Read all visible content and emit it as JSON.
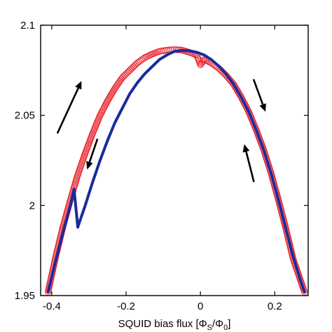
{
  "chart_data": {
    "type": "scatter",
    "title": "",
    "xlabel": "SQUID bias flux [Φ_S/Φ_0]",
    "xlabel_parts": {
      "main": "SQUID bias flux [Φ",
      "sub1": "S",
      "mid": "/Φ",
      "sub2": "0",
      "end": "]"
    },
    "ylabel": "",
    "xlim": [
      -0.43,
      0.29
    ],
    "ylim": [
      1.95,
      2.1
    ],
    "grid": false,
    "x_ticks": [
      -0.4,
      -0.2,
      0,
      0.2
    ],
    "x_tick_labels": [
      "-0.4",
      "-0.2",
      "0",
      "0.2"
    ],
    "y_ticks": [
      1.95,
      2.0,
      2.05,
      2.1
    ],
    "y_tick_labels": [
      "1.95",
      "2",
      "2.05",
      "2.1"
    ],
    "series": [
      {
        "marker": "open-circle",
        "color": "#e8202a",
        "x": [
          -0.41,
          -0.39,
          -0.37,
          -0.35,
          -0.33,
          -0.31,
          -0.29,
          -0.27,
          -0.25,
          -0.23,
          -0.21,
          -0.19,
          -0.17,
          -0.15,
          -0.13,
          -0.11,
          -0.09,
          -0.07,
          -0.05,
          -0.03,
          -0.01,
          0.0,
          0.01,
          0.03,
          0.05,
          0.07,
          0.09,
          0.11,
          0.13,
          0.15,
          0.17,
          0.19,
          0.21,
          0.23,
          0.25,
          0.27,
          0.28
        ],
        "y": [
          1.952,
          1.971,
          1.988,
          2.003,
          2.017,
          2.029,
          2.04,
          2.05,
          2.058,
          2.065,
          2.071,
          2.075,
          2.079,
          2.082,
          2.084,
          2.0855,
          2.0862,
          2.0865,
          2.0862,
          2.085,
          2.0835,
          2.078,
          2.081,
          2.079,
          2.076,
          2.072,
          2.067,
          2.06,
          2.052,
          2.042,
          2.031,
          2.018,
          2.003,
          1.987,
          1.97,
          1.958,
          1.952
        ]
      },
      {
        "marker": "filled-dot",
        "color": "#1a2a9c",
        "x": [
          -0.41,
          -0.39,
          -0.37,
          -0.35,
          -0.34,
          -0.33,
          -0.31,
          -0.29,
          -0.27,
          -0.25,
          -0.23,
          -0.21,
          -0.19,
          -0.17,
          -0.15,
          -0.13,
          -0.11,
          -0.09,
          -0.07,
          -0.05,
          -0.03,
          -0.01,
          0.01,
          0.03,
          0.05,
          0.07,
          0.09,
          0.11,
          0.13,
          0.15,
          0.17,
          0.19,
          0.21,
          0.23,
          0.25,
          0.27,
          0.28
        ],
        "y": [
          1.952,
          1.969,
          1.985,
          2.0,
          2.009,
          1.988,
          2.0,
          2.013,
          2.025,
          2.036,
          2.046,
          2.054,
          2.062,
          2.068,
          2.073,
          2.077,
          2.081,
          2.0835,
          2.0855,
          2.086,
          2.0858,
          2.085,
          2.0835,
          2.0808,
          2.0772,
          2.0726,
          2.067,
          2.06,
          2.052,
          2.042,
          2.031,
          2.018,
          2.003,
          1.987,
          1.971,
          1.958,
          1.952
        ]
      }
    ],
    "annotations": [
      {
        "type": "arrow",
        "direction": "up-right",
        "x": [
          -0.385,
          -0.32
        ],
        "y": [
          2.04,
          2.069
        ]
      },
      {
        "type": "arrow",
        "direction": "down-left",
        "x": [
          -0.277,
          -0.305
        ],
        "y": [
          2.037,
          2.02
        ]
      },
      {
        "type": "arrow",
        "direction": "down-right",
        "x": [
          0.143,
          0.175
        ],
        "y": [
          2.07,
          2.052
        ]
      },
      {
        "type": "arrow",
        "direction": "up-left",
        "x": [
          0.144,
          0.118
        ],
        "y": [
          2.013,
          2.034
        ]
      }
    ]
  }
}
